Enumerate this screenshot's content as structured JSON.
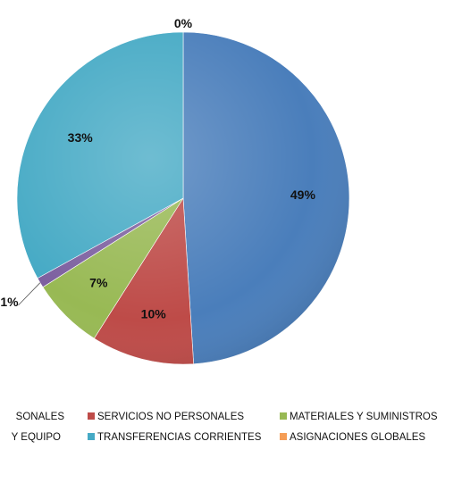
{
  "chart_data": {
    "type": "pie",
    "title": "",
    "legend_position": "bottom",
    "slices": [
      {
        "category": "SERVICIOS PERSONALES",
        "legend_label": "SONALES",
        "value": 49,
        "label": "49%",
        "color": "#4a7ebb"
      },
      {
        "category": "SERVICIOS NO PERSONALES",
        "legend_label": "SERVICIOS NO PERSONALES",
        "value": 10,
        "label": "10%",
        "color": "#be4b48"
      },
      {
        "category": "MATERIALES Y SUMINISTROS",
        "legend_label": "MATERIALES Y SUMINISTROS",
        "value": 7,
        "label": "7%",
        "color": "#98b954"
      },
      {
        "category": "MAQUINARIA Y EQUIPO",
        "legend_label": "Y EQUIPO",
        "value": 1,
        "label": "1%",
        "color": "#7d60a0"
      },
      {
        "category": "TRANSFERENCIAS CORRIENTES",
        "legend_label": "TRANSFERENCIAS CORRIENTES",
        "value": 33,
        "label": "33%",
        "color": "#46aac5"
      },
      {
        "category": "ASIGNACIONES GLOBALES",
        "legend_label": "ASIGNACIONES GLOBALES",
        "value": 0,
        "label": "0%",
        "color": "#f59d56"
      }
    ]
  }
}
